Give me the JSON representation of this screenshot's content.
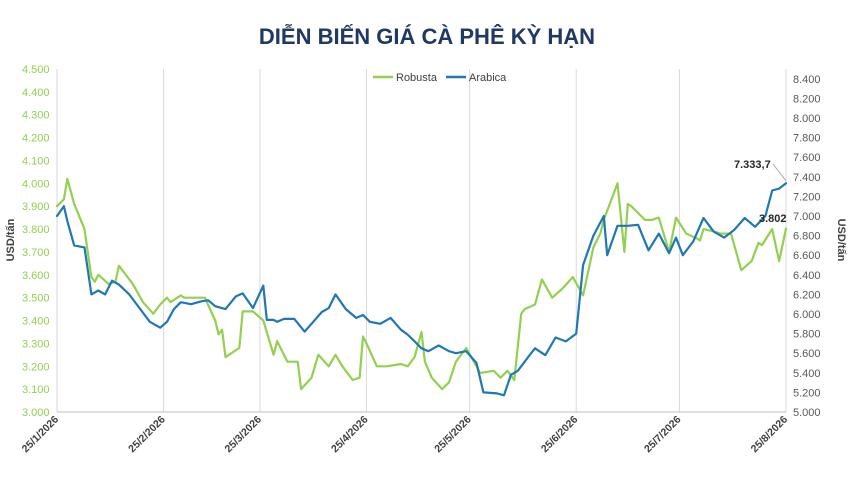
{
  "colors": {
    "robusta": "#92d050",
    "arabica": "#1f77b4",
    "title": "#1f3864",
    "grid": "#d9d9d9"
  },
  "chart_data": {
    "type": "line",
    "title": "DIỄN BIẾN GIÁ CÀ PHÊ KỲ HẠN",
    "ylabel_left": "USD/tấn",
    "ylabel_right": "USD/tấn",
    "xlabel": "",
    "x_ticks": [
      "25/1/2026",
      "25/2/2026",
      "25/3/2026",
      "25/4/2026",
      "25/5/2026",
      "25/6/2026",
      "25/7/2026",
      "25/8/2026"
    ],
    "y_left_ticks": [
      "3.000",
      "3.100",
      "3.200",
      "3.300",
      "3.400",
      "3.500",
      "3.600",
      "3.700",
      "3.800",
      "3.900",
      "4.000",
      "4.100",
      "4.200",
      "4.300",
      "4.400",
      "4.500"
    ],
    "y_right_ticks": [
      "5.000",
      "5.200",
      "5.400",
      "5.600",
      "5.800",
      "6.000",
      "6.200",
      "6.400",
      "6.600",
      "6.800",
      "7.000",
      "7.200",
      "7.400",
      "7.600",
      "7.800",
      "8.000",
      "8.200",
      "8.400"
    ],
    "ylim_left": [
      3000,
      4500
    ],
    "ylim_right": [
      5000,
      8500
    ],
    "grid": "vertical",
    "legend": "top-center",
    "annotations": [
      {
        "text": "7.333,7",
        "series": "Arabica"
      },
      {
        "text": "3.802",
        "series": "Robusta"
      }
    ],
    "series": [
      {
        "name": "Robusta",
        "axis": "left",
        "x": [
          "2026-01-25",
          "2026-01-27",
          "2026-01-28",
          "2026-01-30",
          "2026-02-02",
          "2026-02-04",
          "2026-02-05",
          "2026-02-06",
          "2026-02-09",
          "2026-02-11",
          "2026-02-12",
          "2026-02-16",
          "2026-02-19",
          "2026-02-22",
          "2026-02-24",
          "2026-02-26",
          "2026-02-27",
          "2026-03-02",
          "2026-03-03",
          "2026-03-05",
          "2026-03-09",
          "2026-03-12",
          "2026-03-13",
          "2026-03-14",
          "2026-03-15",
          "2026-03-19",
          "2026-03-20",
          "2026-03-23",
          "2026-03-26",
          "2026-03-29",
          "2026-03-30",
          "2026-04-02",
          "2026-04-05",
          "2026-04-06",
          "2026-04-09",
          "2026-04-11",
          "2026-04-14",
          "2026-04-16",
          "2026-04-18",
          "2026-04-21",
          "2026-04-23",
          "2026-04-24",
          "2026-04-25",
          "2026-04-28",
          "2026-04-30",
          "2026-05-01",
          "2026-05-05",
          "2026-05-07",
          "2026-05-09",
          "2026-05-11",
          "2026-05-12",
          "2026-05-14",
          "2026-05-17",
          "2026-05-19",
          "2026-05-21",
          "2026-05-23",
          "2026-05-24",
          "2026-05-27",
          "2026-05-28",
          "2026-06-01",
          "2026-06-03",
          "2026-06-05",
          "2026-06-07",
          "2026-06-09",
          "2026-06-10",
          "2026-06-13",
          "2026-06-15",
          "2026-06-18",
          "2026-06-21",
          "2026-06-24",
          "2026-06-27",
          "2026-06-30",
          "2026-07-02",
          "2026-07-03",
          "2026-07-07",
          "2026-07-09",
          "2026-07-10",
          "2026-07-11",
          "2026-07-15",
          "2026-07-17",
          "2026-07-19",
          "2026-07-22",
          "2026-07-24",
          "2026-07-27",
          "2026-07-30",
          "2026-07-31",
          "2026-08-01",
          "2026-08-04",
          "2026-08-06",
          "2026-08-09",
          "2026-08-12",
          "2026-08-15",
          "2026-08-17",
          "2026-08-18",
          "2026-08-21",
          "2026-08-23",
          "2026-08-25"
        ],
        "values": [
          3900,
          3930,
          4020,
          3910,
          3800,
          3590,
          3570,
          3600,
          3560,
          3570,
          3640,
          3560,
          3480,
          3430,
          3470,
          3500,
          3480,
          3510,
          3500,
          3500,
          3500,
          3400,
          3340,
          3360,
          3240,
          3280,
          3440,
          3440,
          3400,
          3250,
          3310,
          3220,
          3220,
          3100,
          3150,
          3250,
          3200,
          3250,
          3200,
          3140,
          3150,
          3330,
          3300,
          3200,
          3200,
          3200,
          3210,
          3200,
          3240,
          3350,
          3220,
          3150,
          3100,
          3130,
          3220,
          3260,
          3280,
          3200,
          3170,
          3180,
          3150,
          3180,
          3140,
          3430,
          3450,
          3470,
          3580,
          3500,
          3540,
          3590,
          3510,
          3720,
          3780,
          3840,
          4000,
          3700,
          3910,
          3900,
          3840,
          3840,
          3850,
          3700,
          3850,
          3780,
          3760,
          3750,
          3800,
          3790,
          3780,
          3780,
          3620,
          3660,
          3740,
          3730,
          3800,
          3660,
          3802
        ]
      },
      {
        "name": "Arabica",
        "axis": "right",
        "x": [
          "2026-01-25",
          "2026-01-27",
          "2026-01-28",
          "2026-01-30",
          "2026-02-02",
          "2026-02-04",
          "2026-02-06",
          "2026-02-08",
          "2026-02-10",
          "2026-02-12",
          "2026-02-15",
          "2026-02-18",
          "2026-02-21",
          "2026-02-24",
          "2026-02-26",
          "2026-02-28",
          "2026-03-02",
          "2026-03-05",
          "2026-03-08",
          "2026-03-10",
          "2026-03-12",
          "2026-03-15",
          "2026-03-18",
          "2026-03-20",
          "2026-03-23",
          "2026-03-26",
          "2026-03-27",
          "2026-03-29",
          "2026-03-30",
          "2026-04-01",
          "2026-04-04",
          "2026-04-07",
          "2026-04-09",
          "2026-04-12",
          "2026-04-14",
          "2026-04-16",
          "2026-04-19",
          "2026-04-22",
          "2026-04-24",
          "2026-04-26",
          "2026-04-29",
          "2026-05-02",
          "2026-05-05",
          "2026-05-07",
          "2026-05-09",
          "2026-05-11",
          "2026-05-13",
          "2026-05-16",
          "2026-05-19",
          "2026-05-21",
          "2026-05-24",
          "2026-05-27",
          "2026-05-29",
          "2026-06-02",
          "2026-06-04",
          "2026-06-06",
          "2026-06-08",
          "2026-06-11",
          "2026-06-13",
          "2026-06-16",
          "2026-06-19",
          "2026-06-22",
          "2026-06-25",
          "2026-06-27",
          "2026-06-30",
          "2026-07-03",
          "2026-07-04",
          "2026-07-07",
          "2026-07-10",
          "2026-07-13",
          "2026-07-16",
          "2026-07-19",
          "2026-07-22",
          "2026-07-24",
          "2026-07-26",
          "2026-07-29",
          "2026-08-01",
          "2026-08-04",
          "2026-08-07",
          "2026-08-10",
          "2026-08-13",
          "2026-08-16",
          "2026-08-19",
          "2026-08-21",
          "2026-08-23",
          "2026-08-25"
        ],
        "values": [
          7000,
          7100,
          6950,
          6700,
          6680,
          6200,
          6240,
          6200,
          6340,
          6300,
          6200,
          6060,
          5920,
          5860,
          5920,
          6050,
          6120,
          6100,
          6130,
          6140,
          6080,
          6050,
          6180,
          6210,
          6060,
          6290,
          5940,
          5940,
          5920,
          5950,
          5950,
          5820,
          5900,
          6020,
          6060,
          6200,
          6050,
          5960,
          5990,
          5920,
          5900,
          5960,
          5840,
          5790,
          5720,
          5650,
          5620,
          5680,
          5620,
          5600,
          5620,
          5500,
          5200,
          5190,
          5170,
          5380,
          5420,
          5560,
          5650,
          5580,
          5760,
          5720,
          5800,
          6500,
          6800,
          7000,
          6600,
          6900,
          6900,
          6910,
          6650,
          6820,
          6620,
          6780,
          6600,
          6740,
          6980,
          6840,
          6780,
          6860,
          6980,
          6890,
          7000,
          7260,
          7280,
          7334
        ]
      }
    ]
  }
}
